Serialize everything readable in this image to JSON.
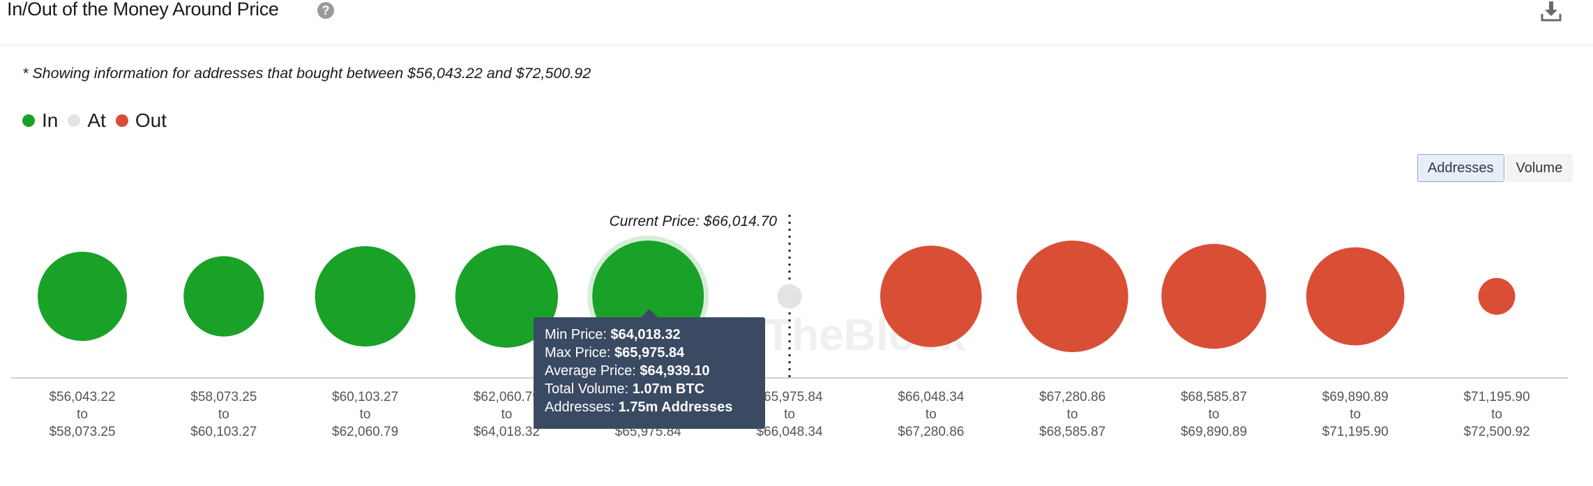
{
  "header": {
    "title": "In/Out of the Money Around Price",
    "help_icon": "question-circle-icon",
    "download_icon": "download-icon"
  },
  "note": "* Showing information for addresses that bought between $56,043.22 and $72,500.92",
  "legend": [
    {
      "label": "In",
      "color": "#1aa128"
    },
    {
      "label": "At",
      "color": "#e3e3e3"
    },
    {
      "label": "Out",
      "color": "#d94f36"
    }
  ],
  "toggle": {
    "addresses_label": "Addresses",
    "volume_label": "Volume",
    "active": "Addresses"
  },
  "chart_data": {
    "type": "bubble",
    "current_price_label": "Current Price: $66,014.70",
    "current_price": 66014.7,
    "watermark": "TheBlock",
    "buckets": [
      {
        "from": "$56,043.22",
        "to": "$58,073.25",
        "status": "In",
        "relative_size": 0.8
      },
      {
        "from": "$58,073.25",
        "to": "$60,103.27",
        "status": "In",
        "relative_size": 0.72
      },
      {
        "from": "$60,103.27",
        "to": "$62,060.79",
        "status": "In",
        "relative_size": 0.9
      },
      {
        "from": "$62,060.79",
        "to": "$64,018.32",
        "status": "In",
        "relative_size": 0.92
      },
      {
        "from": "$64,018.32",
        "to": "$65,975.84",
        "status": "In",
        "relative_size": 1.0,
        "highlighted": true
      },
      {
        "from": "$65,975.84",
        "to": "$66,048.34",
        "status": "At",
        "relative_size": 0.22
      },
      {
        "from": "$66,048.34",
        "to": "$67,280.86",
        "status": "Out",
        "relative_size": 0.91
      },
      {
        "from": "$67,280.86",
        "to": "$68,585.87",
        "status": "Out",
        "relative_size": 1.0
      },
      {
        "from": "$68,585.87",
        "to": "$69,890.89",
        "status": "Out",
        "relative_size": 0.94
      },
      {
        "from": "$69,890.89",
        "to": "$71,195.90",
        "status": "Out",
        "relative_size": 0.88
      },
      {
        "from": "$71,195.90",
        "to": "$72,500.92",
        "status": "Out",
        "relative_size": 0.33
      }
    ],
    "separator_word": "to"
  },
  "tooltip": {
    "min_label": "Min Price:",
    "min_value": "$64,018.32",
    "max_label": "Max Price:",
    "max_value": "$65,975.84",
    "avg_label": "Average Price:",
    "avg_value": "$64,939.10",
    "vol_label": "Total Volume:",
    "vol_value": "1.07m BTC",
    "addr_label": "Addresses:",
    "addr_value": "1.75m Addresses"
  }
}
